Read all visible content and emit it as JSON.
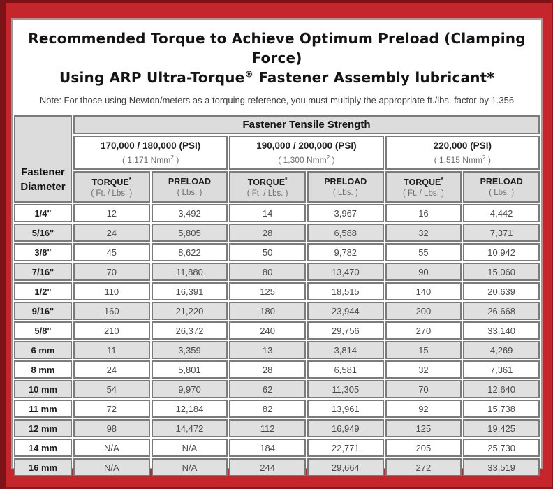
{
  "colors": {
    "frame_red": "#c4262b",
    "frame_dark_red": "#7d1316",
    "content_border": "#9b9b9b",
    "cell_border": "#7b7b7b",
    "header_gray": "#dcdcdc",
    "alt_row_gray": "#e0e0e0"
  },
  "title": {
    "line1": "Recommended Torque to Achieve Optimum Preload (Clamping Force)",
    "line2_pre": "Using ARP Ultra-Torque",
    "line2_sup": "®",
    "line2_post": " Fastener Assembly lubricant*",
    "note": "Note: For those using Newton/meters as a torquing reference, you must multiply the appropriate ft./lbs. factor by 1.356"
  },
  "table": {
    "tensile_header": "Fastener Tensile Strength",
    "diameter_header_line1": "Fastener",
    "diameter_header_line2": "Diameter",
    "strength_groups": [
      {
        "psi_label": "170,000 / 180,000 (PSI)",
        "nmm_base": "( 1,171 Nmm",
        "nmm_sup": "2",
        "nmm_close": " )"
      },
      {
        "psi_label": "190,000 / 200,000 (PSI)",
        "nmm_base": "( 1,300 Nmm",
        "nmm_sup": "2",
        "nmm_close": " )"
      },
      {
        "psi_label": "220,000 (PSI)",
        "nmm_base": "( 1,515 Nmm",
        "nmm_sup": "2",
        "nmm_close": " )"
      }
    ],
    "col_headers": {
      "torque_label": "TORQUE",
      "torque_sup": "*",
      "torque_unit": "( Ft. / Lbs. )",
      "preload_label": "PRELOAD",
      "preload_unit": "( Lbs. )"
    },
    "rows": [
      {
        "diameter": "1/4\"",
        "values": [
          "12",
          "3,492",
          "14",
          "3,967",
          "16",
          "4,442"
        ]
      },
      {
        "diameter": "5/16\"",
        "values": [
          "24",
          "5,805",
          "28",
          "6,588",
          "32",
          "7,371"
        ]
      },
      {
        "diameter": "3/8\"",
        "values": [
          "45",
          "8,622",
          "50",
          "9,782",
          "55",
          "10,942"
        ]
      },
      {
        "diameter": "7/16\"",
        "values": [
          "70",
          "11,880",
          "80",
          "13,470",
          "90",
          "15,060"
        ]
      },
      {
        "diameter": "1/2\"",
        "values": [
          "110",
          "16,391",
          "125",
          "18,515",
          "140",
          "20,639"
        ]
      },
      {
        "diameter": "9/16\"",
        "values": [
          "160",
          "21,220",
          "180",
          "23,944",
          "200",
          "26,668"
        ]
      },
      {
        "diameter": "5/8\"",
        "values": [
          "210",
          "26,372",
          "240",
          "29,756",
          "270",
          "33,140"
        ]
      },
      {
        "diameter": "6 mm",
        "values": [
          "11",
          "3,359",
          "13",
          "3,814",
          "15",
          "4,269"
        ]
      },
      {
        "diameter": "8 mm",
        "values": [
          "24",
          "5,801",
          "28",
          "6,581",
          "32",
          "7,361"
        ]
      },
      {
        "diameter": "10 mm",
        "values": [
          "54",
          "9,970",
          "62",
          "11,305",
          "70",
          "12,640"
        ]
      },
      {
        "diameter": "11 mm",
        "values": [
          "72",
          "12,184",
          "82",
          "13,961",
          "92",
          "15,738"
        ]
      },
      {
        "diameter": "12 mm",
        "values": [
          "98",
          "14,472",
          "112",
          "16,949",
          "125",
          "19,425"
        ]
      },
      {
        "diameter": "14 mm",
        "values": [
          "N/A",
          "N/A",
          "184",
          "22,771",
          "205",
          "25,730"
        ]
      },
      {
        "diameter": "16 mm",
        "values": [
          "N/A",
          "N/A",
          "244",
          "29,664",
          "272",
          "33,519"
        ]
      }
    ]
  }
}
